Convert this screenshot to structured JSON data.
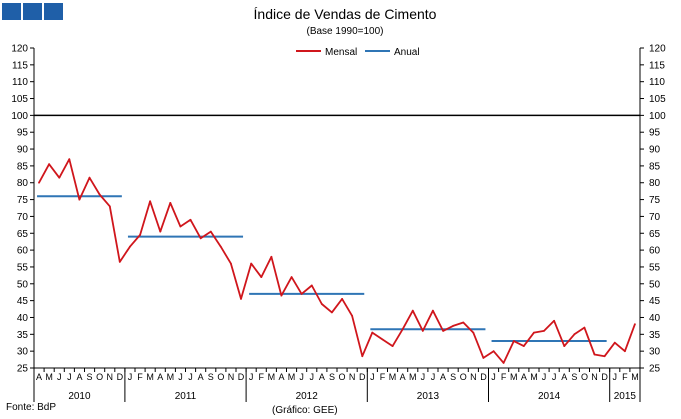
{
  "header_blocks": 3,
  "colors": {
    "mensal": "#d0161c",
    "anual": "#2f75b5",
    "reference": "#000000",
    "blocks": "#1f5fa8"
  },
  "source": "Fonte: BdP",
  "credit": "(Gráfico: GEE)",
  "chart_data": {
    "type": "line",
    "title": "Índice de Vendas de Cimento",
    "subtitle": "(Base 1990=100)",
    "ylim": [
      25,
      120
    ],
    "yticks": [
      "25",
      "30",
      "35",
      "40",
      "45",
      "50",
      "55",
      "60",
      "65",
      "70",
      "75",
      "80",
      "85",
      "90",
      "95",
      "100",
      "105",
      "110",
      "115",
      "120"
    ],
    "grid": false,
    "legend_position": "top-center",
    "reference_line": 100,
    "x": [
      "2010-04",
      "2010-05",
      "2010-06",
      "2010-07",
      "2010-08",
      "2010-09",
      "2010-10",
      "2010-11",
      "2010-12",
      "2011-01",
      "2011-02",
      "2011-03",
      "2011-04",
      "2011-05",
      "2011-06",
      "2011-07",
      "2011-08",
      "2011-09",
      "2011-10",
      "2011-11",
      "2011-12",
      "2012-01",
      "2012-02",
      "2012-03",
      "2012-04",
      "2012-05",
      "2012-06",
      "2012-07",
      "2012-08",
      "2012-09",
      "2012-10",
      "2012-11",
      "2012-12",
      "2013-01",
      "2013-02",
      "2013-03",
      "2013-04",
      "2013-05",
      "2013-06",
      "2013-07",
      "2013-08",
      "2013-09",
      "2013-10",
      "2013-11",
      "2013-12",
      "2014-01",
      "2014-02",
      "2014-03",
      "2014-04",
      "2014-05",
      "2014-06",
      "2014-07",
      "2014-08",
      "2014-09",
      "2014-10",
      "2014-11",
      "2014-12",
      "2015-01",
      "2015-02",
      "2015-03"
    ],
    "month_labels": [
      "A",
      "M",
      "J",
      "J",
      "A",
      "S",
      "O",
      "N",
      "D",
      "J",
      "F",
      "M",
      "A",
      "M",
      "J",
      "J",
      "A",
      "S",
      "O",
      "N",
      "D",
      "J",
      "F",
      "M",
      "A",
      "M",
      "J",
      "J",
      "A",
      "S",
      "O",
      "N",
      "D",
      "J",
      "F",
      "M",
      "A",
      "M",
      "J",
      "J",
      "A",
      "S",
      "O",
      "N",
      "D",
      "J",
      "F",
      "M",
      "A",
      "M",
      "J",
      "J",
      "A",
      "S",
      "O",
      "N",
      "D",
      "J",
      "F",
      "M"
    ],
    "year_groups": [
      {
        "label": "2010",
        "start": 0,
        "end": 8
      },
      {
        "label": "2011",
        "start": 9,
        "end": 20
      },
      {
        "label": "2012",
        "start": 21,
        "end": 32
      },
      {
        "label": "2013",
        "start": 33,
        "end": 44
      },
      {
        "label": "2014",
        "start": 45,
        "end": 56
      },
      {
        "label": "2015",
        "start": 57,
        "end": 59
      }
    ],
    "series": [
      {
        "name": "Mensal",
        "color": "#d0161c",
        "values": [
          80,
          85.5,
          81.5,
          87,
          75,
          81.5,
          76.5,
          73,
          56.5,
          61,
          64.5,
          74.5,
          65.5,
          74,
          67,
          69,
          63.5,
          65.5,
          61,
          56,
          45.5,
          56,
          52,
          58,
          46.5,
          52,
          47,
          49.5,
          44,
          41.5,
          45.5,
          40.5,
          28.5,
          35.5,
          33.5,
          31.5,
          36.5,
          42,
          36,
          42,
          36,
          37.5,
          38.5,
          35.5,
          28,
          30,
          26.5,
          33,
          31.5,
          35.5,
          36,
          39,
          31.5,
          35,
          37,
          29,
          28.5,
          32.5,
          30,
          38
        ]
      },
      {
        "name": "Anual",
        "color": "#2f75b5",
        "segments": [
          {
            "year": "2010",
            "value": 76,
            "start": 0,
            "end": 8
          },
          {
            "year": "2011",
            "value": 64,
            "start": 9,
            "end": 20
          },
          {
            "year": "2012",
            "value": 47,
            "start": 21,
            "end": 32
          },
          {
            "year": "2013",
            "value": 36.5,
            "start": 33,
            "end": 44
          },
          {
            "year": "2014",
            "value": 33,
            "start": 45,
            "end": 56
          }
        ]
      }
    ]
  }
}
